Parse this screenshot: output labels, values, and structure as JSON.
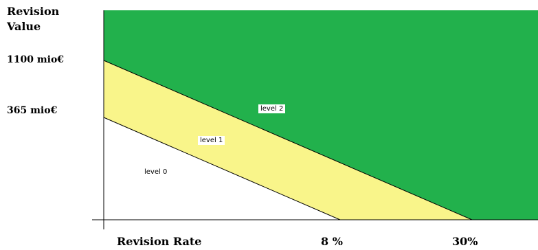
{
  "diagram": {
    "y_axis_title_line1": "Revision",
    "y_axis_title_line2": "Value",
    "y_tick_high": "1100 mio€",
    "y_tick_low": "365 mio€",
    "x_axis_title": "Revision Rate",
    "x_tick_mid": "8 %",
    "x_tick_high": "30%",
    "levels": [
      {
        "label": "level 0",
        "color": "#ffffff"
      },
      {
        "label": "level 1",
        "color": "#f9f58a"
      },
      {
        "label": "level 2",
        "color": "#22b14c"
      }
    ]
  }
}
